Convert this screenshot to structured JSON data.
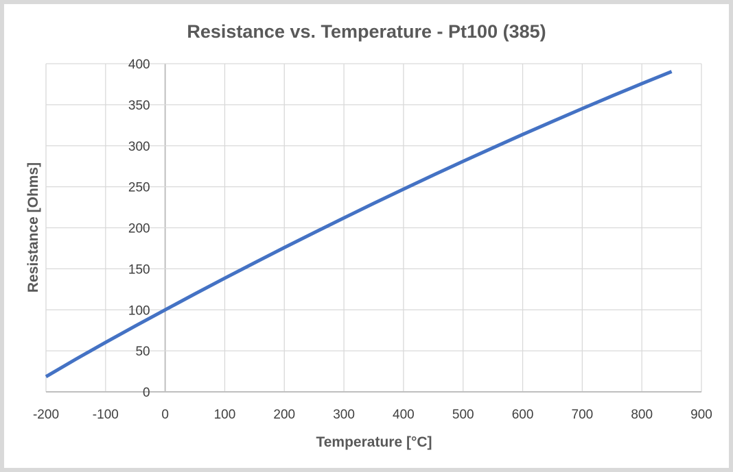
{
  "chart_data": {
    "type": "line",
    "title": "Resistance vs. Temperature - Pt100 (385)",
    "xlabel": "Temperature [°C]",
    "ylabel": "Resistance [Ohms]",
    "xlim": [
      -200,
      900
    ],
    "ylim": [
      0,
      400
    ],
    "xticks": [
      -200,
      -100,
      0,
      100,
      200,
      300,
      400,
      500,
      600,
      700,
      800,
      900
    ],
    "yticks": [
      0,
      50,
      100,
      150,
      200,
      250,
      300,
      350,
      400
    ],
    "grid": true,
    "legend": "none",
    "line_color": "#4472c4",
    "series": [
      {
        "x": [
          -200,
          -150,
          -100,
          -50,
          0,
          50,
          100,
          150,
          200,
          250,
          300,
          350,
          400,
          450,
          500,
          550,
          600,
          650,
          700,
          750,
          800,
          850
        ],
        "y": [
          18.52,
          39.72,
          60.26,
          80.31,
          100.0,
          119.4,
          138.51,
          157.33,
          175.86,
          194.1,
          212.05,
          229.72,
          247.09,
          264.18,
          280.98,
          297.49,
          313.71,
          329.64,
          345.28,
          360.64,
          375.7,
          390.48
        ]
      }
    ]
  }
}
